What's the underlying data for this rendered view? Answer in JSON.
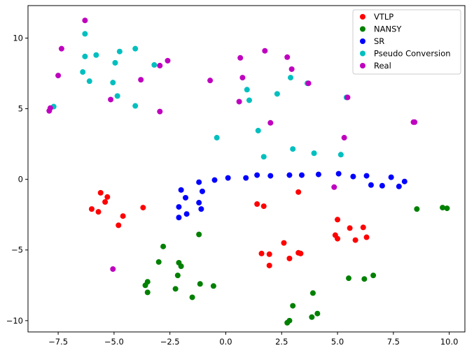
{
  "chart_data": {
    "type": "scatter",
    "title": "",
    "xlabel": "",
    "ylabel": "",
    "xlim": [
      -8.85,
      10.7
    ],
    "ylim": [
      -10.8,
      12.3
    ],
    "xticks": [
      -7.5,
      -5.0,
      -2.5,
      0.0,
      2.5,
      5.0,
      7.5,
      10.0
    ],
    "xtick_labels": [
      "−7.5",
      "−5.0",
      "−2.5",
      "0.0",
      "2.5",
      "5.0",
      "7.5",
      "10.0"
    ],
    "yticks": [
      -10,
      -5,
      0,
      5,
      10
    ],
    "ytick_labels": [
      "−10",
      "−5",
      "0",
      "5",
      "10"
    ],
    "grid": false,
    "legend_position": "top-right",
    "series": [
      {
        "name": "VTLP",
        "color": "#ff0000",
        "points": [
          [
            -5.6,
            -0.95
          ],
          [
            -5.3,
            -1.25
          ],
          [
            -5.4,
            -1.6
          ],
          [
            -6.0,
            -2.1
          ],
          [
            -5.7,
            -2.3
          ],
          [
            -4.6,
            -2.6
          ],
          [
            -4.8,
            -3.25
          ],
          [
            -3.7,
            -2.0
          ],
          [
            1.4,
            -1.75
          ],
          [
            1.7,
            -1.9
          ],
          [
            3.25,
            -0.9
          ],
          [
            1.6,
            -5.25
          ],
          [
            1.95,
            -5.3
          ],
          [
            1.95,
            -6.1
          ],
          [
            2.6,
            -4.5
          ],
          [
            2.85,
            -5.6
          ],
          [
            3.25,
            -5.2
          ],
          [
            3.35,
            -5.25
          ],
          [
            5.0,
            -2.85
          ],
          [
            4.9,
            -3.95
          ],
          [
            5.0,
            -4.2
          ],
          [
            5.55,
            -3.45
          ],
          [
            5.8,
            -4.3
          ],
          [
            6.15,
            -3.4
          ],
          [
            6.3,
            -4.1
          ]
        ]
      },
      {
        "name": "NANSY",
        "color": "#008000",
        "points": [
          [
            -2.8,
            -4.75
          ],
          [
            -1.2,
            -3.9
          ],
          [
            -2.1,
            -5.9
          ],
          [
            -2.0,
            -6.15
          ],
          [
            -3.0,
            -5.85
          ],
          [
            -3.5,
            -7.25
          ],
          [
            -3.6,
            -7.5
          ],
          [
            -3.5,
            -8.0
          ],
          [
            -2.25,
            -7.75
          ],
          [
            -2.15,
            -6.8
          ],
          [
            -1.15,
            -7.4
          ],
          [
            -0.55,
            -7.55
          ],
          [
            -1.5,
            -8.35
          ],
          [
            2.75,
            -10.15
          ],
          [
            2.85,
            -10.0
          ],
          [
            3.0,
            -8.95
          ],
          [
            3.9,
            -8.05
          ],
          [
            3.85,
            -9.75
          ],
          [
            4.1,
            -9.5
          ],
          [
            5.5,
            -7.0
          ],
          [
            6.2,
            -7.05
          ],
          [
            6.6,
            -6.8
          ],
          [
            8.55,
            -2.1
          ],
          [
            9.7,
            -2.0
          ],
          [
            9.9,
            -2.05
          ]
        ]
      },
      {
        "name": "SR",
        "color": "#0000ff",
        "points": [
          [
            -2.0,
            -0.75
          ],
          [
            -1.8,
            -1.3
          ],
          [
            -2.1,
            -1.95
          ],
          [
            -1.75,
            -2.45
          ],
          [
            -2.1,
            -2.7
          ],
          [
            -1.2,
            -0.2
          ],
          [
            -1.05,
            -0.85
          ],
          [
            -1.2,
            -1.65
          ],
          [
            -1.1,
            -2.1
          ],
          [
            -0.5,
            -0.05
          ],
          [
            0.1,
            0.1
          ],
          [
            0.9,
            0.1
          ],
          [
            1.4,
            0.3
          ],
          [
            2.0,
            0.25
          ],
          [
            2.85,
            0.3
          ],
          [
            3.4,
            0.3
          ],
          [
            4.15,
            0.35
          ],
          [
            5.05,
            0.4
          ],
          [
            5.7,
            0.2
          ],
          [
            6.3,
            0.25
          ],
          [
            6.5,
            -0.4
          ],
          [
            7.0,
            -0.45
          ],
          [
            7.4,
            0.15
          ],
          [
            7.75,
            -0.5
          ],
          [
            8.0,
            -0.15
          ]
        ]
      },
      {
        "name": "Pseudo Conversion",
        "color": "#00bfbf",
        "points": [
          [
            -7.7,
            5.15
          ],
          [
            -6.3,
            10.3
          ],
          [
            -6.3,
            8.7
          ],
          [
            -5.8,
            8.8
          ],
          [
            -4.95,
            8.25
          ],
          [
            -4.75,
            9.05
          ],
          [
            -4.05,
            9.25
          ],
          [
            -6.4,
            7.6
          ],
          [
            -6.1,
            6.95
          ],
          [
            -5.05,
            6.85
          ],
          [
            -4.85,
            5.9
          ],
          [
            -4.05,
            5.2
          ],
          [
            -3.2,
            8.1
          ],
          [
            -0.4,
            2.95
          ],
          [
            0.95,
            6.35
          ],
          [
            1.05,
            5.6
          ],
          [
            1.45,
            3.45
          ],
          [
            1.7,
            1.6
          ],
          [
            2.3,
            6.05
          ],
          [
            2.9,
            7.2
          ],
          [
            3.0,
            2.15
          ],
          [
            3.65,
            6.8
          ],
          [
            3.95,
            1.85
          ],
          [
            5.15,
            1.75
          ],
          [
            5.4,
            5.8
          ]
        ]
      },
      {
        "name": "Real",
        "color": "#bf00bf",
        "points": [
          [
            -6.3,
            11.25
          ],
          [
            -7.35,
            9.25
          ],
          [
            -7.5,
            7.35
          ],
          [
            -7.85,
            5.05
          ],
          [
            -7.9,
            4.85
          ],
          [
            -5.15,
            5.65
          ],
          [
            -3.8,
            7.05
          ],
          [
            -2.95,
            8.05
          ],
          [
            -2.6,
            8.4
          ],
          [
            -2.95,
            4.8
          ],
          [
            -0.7,
            7.0
          ],
          [
            0.65,
            8.6
          ],
          [
            0.75,
            7.2
          ],
          [
            0.6,
            5.5
          ],
          [
            1.75,
            9.1
          ],
          [
            2.0,
            4.0
          ],
          [
            2.75,
            8.65
          ],
          [
            2.95,
            7.8
          ],
          [
            3.7,
            6.8
          ],
          [
            5.3,
            2.95
          ],
          [
            5.45,
            5.8
          ],
          [
            4.85,
            -0.55
          ],
          [
            8.4,
            4.05
          ],
          [
            8.45,
            4.05
          ],
          [
            -5.05,
            -6.35
          ]
        ]
      }
    ]
  }
}
